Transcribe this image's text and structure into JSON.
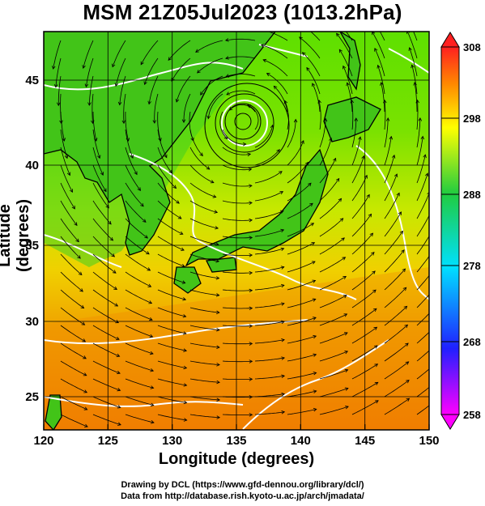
{
  "title": "MSM 21Z05Jul2023 (1013.2hPa)",
  "axes": {
    "xlabel": "Longitude (degrees)",
    "ylabel": "Latitude  (degrees)",
    "xticks": [
      "120",
      "125",
      "130",
      "135",
      "140",
      "145",
      "150"
    ],
    "yticks": [
      "25",
      "30",
      "35",
      "40",
      "45"
    ]
  },
  "colorbar": {
    "ticks": [
      "258",
      "268",
      "278",
      "288",
      "298",
      "308"
    ],
    "min": 258,
    "max": 308,
    "colors": [
      "#ff00ff",
      "#2020ff",
      "#00e0ff",
      "#20cc40",
      "#ffff00",
      "#ff7700",
      "#ff2020"
    ]
  },
  "credits": {
    "line1": "Drawing by DCL (https://www.gfd-dennou.org/library/dcl/)",
    "line2": "Data from http://database.rish.kyoto-u.ac.jp/arch/jmadata/"
  },
  "map": {
    "lon_range": [
      120,
      150
    ],
    "lat_range": [
      22.4,
      47.6
    ],
    "field": "temperature (K) with wind streamlines",
    "features": [
      "low-pressure vortex near 136E 42N",
      "white isotherm contours",
      "coastlines of Japan, Korea, China, Taiwan"
    ]
  }
}
